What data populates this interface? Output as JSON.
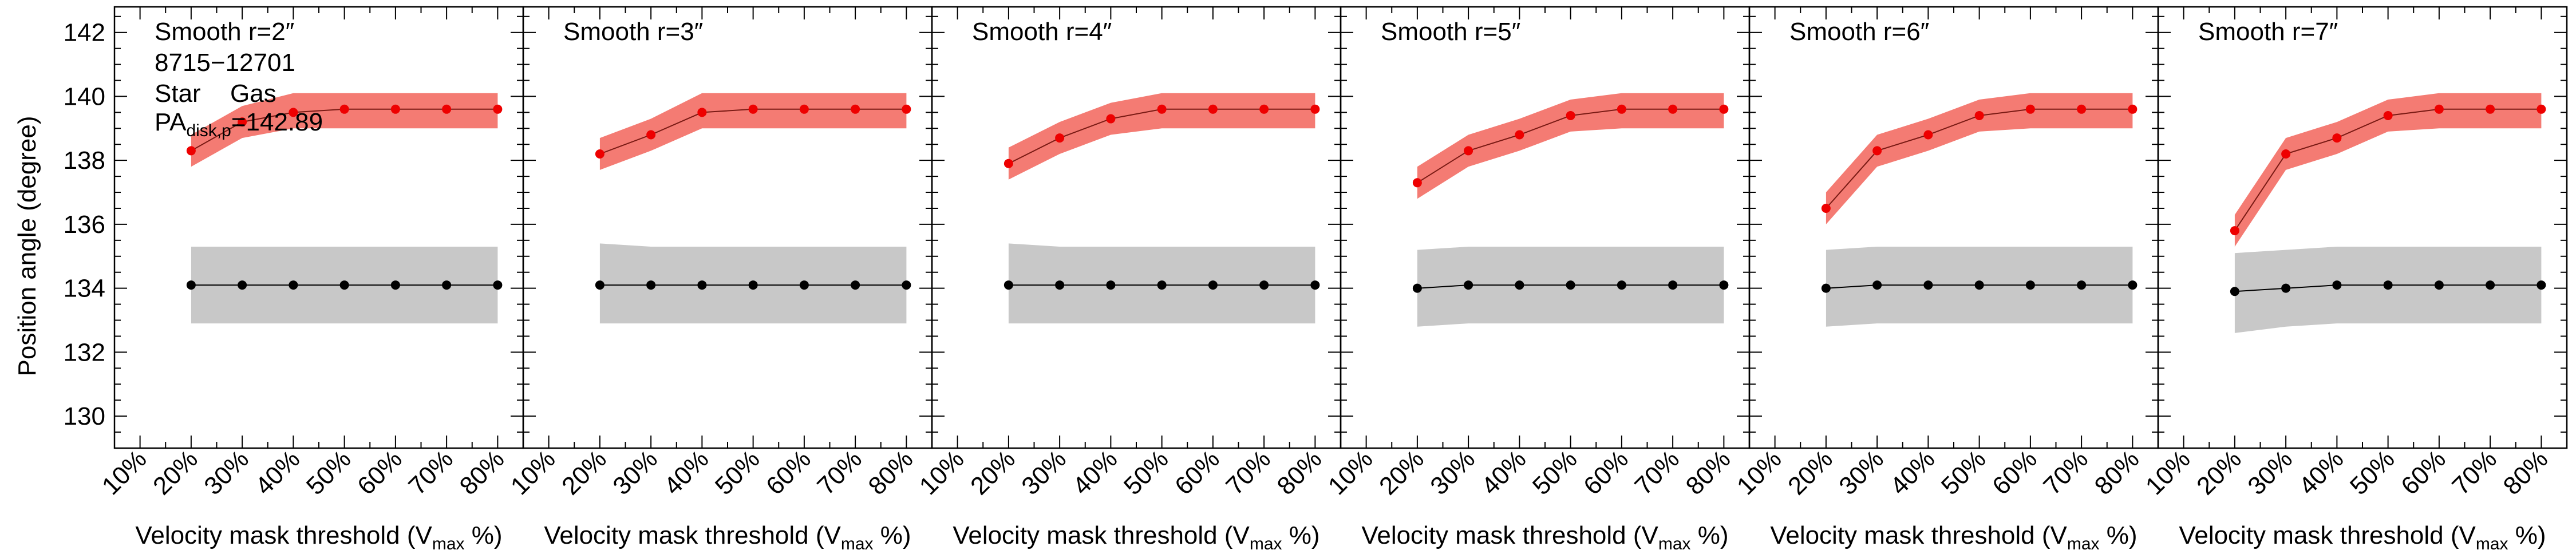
{
  "figure": {
    "ylabel": "Position angle (degree)",
    "xlabel_prefix": "Velocity mask threshold (V",
    "xlabel_sub": "max",
    "xlabel_suffix": " %)",
    "galaxy_id": "8715−12701",
    "legend_star": "Star",
    "legend_gas": "Gas",
    "pa_prefix": "PA",
    "pa_sub": "disk,p",
    "pa_value": "=142.89"
  },
  "colors": {
    "star": "#000000",
    "star_band": "#c8c8c8",
    "gas": "#ee0000",
    "gas_band": "#f47b73",
    "gas_line": "#7a1a14",
    "axis": "#000000"
  },
  "chart_data": [
    {
      "type": "line",
      "title": "Smooth r=2″",
      "x_tick_labels": [
        "10%",
        "20%",
        "30%",
        "40%",
        "50%",
        "60%",
        "70%",
        "80%"
      ],
      "xlim": [
        5,
        85
      ],
      "ylim": [
        129,
        142.8
      ],
      "y_ticks": [
        130,
        132,
        134,
        136,
        138,
        140,
        142
      ],
      "series": [
        {
          "name": "Star",
          "x": [
            20,
            30,
            40,
            50,
            60,
            70,
            80
          ],
          "values": [
            134.1,
            134.1,
            134.1,
            134.1,
            134.1,
            134.1,
            134.1
          ],
          "band_low": [
            132.9,
            132.9,
            132.9,
            132.9,
            132.9,
            132.9,
            132.9
          ],
          "band_high": [
            135.3,
            135.3,
            135.3,
            135.3,
            135.3,
            135.3,
            135.3
          ]
        },
        {
          "name": "Gas",
          "x": [
            20,
            30,
            40,
            50,
            60,
            70,
            80
          ],
          "values": [
            138.3,
            139.2,
            139.5,
            139.6,
            139.6,
            139.6,
            139.6
          ],
          "band_low": [
            137.8,
            138.7,
            139.0,
            139.0,
            139.0,
            139.0,
            139.0
          ],
          "band_high": [
            138.8,
            139.7,
            140.1,
            140.1,
            140.1,
            140.1,
            140.1
          ]
        }
      ]
    },
    {
      "type": "line",
      "title": "Smooth r=3″",
      "x_tick_labels": [
        "10%",
        "20%",
        "30%",
        "40%",
        "50%",
        "60%",
        "70%",
        "80%"
      ],
      "xlim": [
        5,
        85
      ],
      "ylim": [
        129,
        142.8
      ],
      "y_ticks": [
        130,
        132,
        134,
        136,
        138,
        140,
        142
      ],
      "series": [
        {
          "name": "Star",
          "x": [
            20,
            30,
            40,
            50,
            60,
            70,
            80
          ],
          "values": [
            134.1,
            134.1,
            134.1,
            134.1,
            134.1,
            134.1,
            134.1
          ],
          "band_low": [
            132.9,
            132.9,
            132.9,
            132.9,
            132.9,
            132.9,
            132.9
          ],
          "band_high": [
            135.4,
            135.3,
            135.3,
            135.3,
            135.3,
            135.3,
            135.3
          ]
        },
        {
          "name": "Gas",
          "x": [
            20,
            30,
            40,
            50,
            60,
            70,
            80
          ],
          "values": [
            138.2,
            138.8,
            139.5,
            139.6,
            139.6,
            139.6,
            139.6
          ],
          "band_low": [
            137.7,
            138.3,
            139.0,
            139.0,
            139.0,
            139.0,
            139.0
          ],
          "band_high": [
            138.7,
            139.3,
            140.1,
            140.1,
            140.1,
            140.1,
            140.1
          ]
        }
      ]
    },
    {
      "type": "line",
      "title": "Smooth r=4″",
      "x_tick_labels": [
        "10%",
        "20%",
        "30%",
        "40%",
        "50%",
        "60%",
        "70%",
        "80%"
      ],
      "xlim": [
        5,
        85
      ],
      "ylim": [
        129,
        142.8
      ],
      "y_ticks": [
        130,
        132,
        134,
        136,
        138,
        140,
        142
      ],
      "series": [
        {
          "name": "Star",
          "x": [
            20,
            30,
            40,
            50,
            60,
            70,
            80
          ],
          "values": [
            134.1,
            134.1,
            134.1,
            134.1,
            134.1,
            134.1,
            134.1
          ],
          "band_low": [
            132.9,
            132.9,
            132.9,
            132.9,
            132.9,
            132.9,
            132.9
          ],
          "band_high": [
            135.4,
            135.3,
            135.3,
            135.3,
            135.3,
            135.3,
            135.3
          ]
        },
        {
          "name": "Gas",
          "x": [
            20,
            30,
            40,
            50,
            60,
            70,
            80
          ],
          "values": [
            137.9,
            138.7,
            139.3,
            139.6,
            139.6,
            139.6,
            139.6
          ],
          "band_low": [
            137.4,
            138.2,
            138.8,
            139.0,
            139.0,
            139.0,
            139.0
          ],
          "band_high": [
            138.4,
            139.2,
            139.8,
            140.1,
            140.1,
            140.1,
            140.1
          ]
        }
      ]
    },
    {
      "type": "line",
      "title": "Smooth r=5″",
      "x_tick_labels": [
        "10%",
        "20%",
        "30%",
        "40%",
        "50%",
        "60%",
        "70%",
        "80%"
      ],
      "xlim": [
        5,
        85
      ],
      "ylim": [
        129,
        142.8
      ],
      "y_ticks": [
        130,
        132,
        134,
        136,
        138,
        140,
        142
      ],
      "series": [
        {
          "name": "Star",
          "x": [
            20,
            30,
            40,
            50,
            60,
            70,
            80
          ],
          "values": [
            134.0,
            134.1,
            134.1,
            134.1,
            134.1,
            134.1,
            134.1
          ],
          "band_low": [
            132.8,
            132.9,
            132.9,
            132.9,
            132.9,
            132.9,
            132.9
          ],
          "band_high": [
            135.2,
            135.3,
            135.3,
            135.3,
            135.3,
            135.3,
            135.3
          ]
        },
        {
          "name": "Gas",
          "x": [
            20,
            30,
            40,
            50,
            60,
            70,
            80
          ],
          "values": [
            137.3,
            138.3,
            138.8,
            139.4,
            139.6,
            139.6,
            139.6
          ],
          "band_low": [
            136.8,
            137.8,
            138.3,
            138.9,
            139.0,
            139.0,
            139.0
          ],
          "band_high": [
            137.8,
            138.8,
            139.3,
            139.9,
            140.1,
            140.1,
            140.1
          ]
        }
      ]
    },
    {
      "type": "line",
      "title": "Smooth r=6″",
      "x_tick_labels": [
        "10%",
        "20%",
        "30%",
        "40%",
        "50%",
        "60%",
        "70%",
        "80%"
      ],
      "xlim": [
        5,
        85
      ],
      "ylim": [
        129,
        142.8
      ],
      "y_ticks": [
        130,
        132,
        134,
        136,
        138,
        140,
        142
      ],
      "series": [
        {
          "name": "Star",
          "x": [
            20,
            30,
            40,
            50,
            60,
            70,
            80
          ],
          "values": [
            134.0,
            134.1,
            134.1,
            134.1,
            134.1,
            134.1,
            134.1
          ],
          "band_low": [
            132.8,
            132.9,
            132.9,
            132.9,
            132.9,
            132.9,
            132.9
          ],
          "band_high": [
            135.2,
            135.3,
            135.3,
            135.3,
            135.3,
            135.3,
            135.3
          ]
        },
        {
          "name": "Gas",
          "x": [
            20,
            30,
            40,
            50,
            60,
            70,
            80
          ],
          "values": [
            136.5,
            138.3,
            138.8,
            139.4,
            139.6,
            139.6,
            139.6
          ],
          "band_low": [
            136.0,
            137.8,
            138.3,
            138.9,
            139.0,
            139.0,
            139.0
          ],
          "band_high": [
            137.0,
            138.8,
            139.3,
            139.9,
            140.1,
            140.1,
            140.1
          ]
        }
      ]
    },
    {
      "type": "line",
      "title": "Smooth r=7″",
      "x_tick_labels": [
        "10%",
        "20%",
        "30%",
        "40%",
        "50%",
        "60%",
        "70%",
        "80%"
      ],
      "xlim": [
        5,
        85
      ],
      "ylim": [
        129,
        142.8
      ],
      "y_ticks": [
        130,
        132,
        134,
        136,
        138,
        140,
        142
      ],
      "series": [
        {
          "name": "Star",
          "x": [
            20,
            30,
            40,
            50,
            60,
            70,
            80
          ],
          "values": [
            133.9,
            134.0,
            134.1,
            134.1,
            134.1,
            134.1,
            134.1
          ],
          "band_low": [
            132.6,
            132.8,
            132.9,
            132.9,
            132.9,
            132.9,
            132.9
          ],
          "band_high": [
            135.1,
            135.2,
            135.3,
            135.3,
            135.3,
            135.3,
            135.3
          ]
        },
        {
          "name": "Gas",
          "x": [
            20,
            30,
            40,
            50,
            60,
            70,
            80
          ],
          "values": [
            135.8,
            138.2,
            138.7,
            139.4,
            139.6,
            139.6,
            139.6
          ],
          "band_low": [
            135.3,
            137.7,
            138.2,
            138.9,
            139.0,
            139.0,
            139.0
          ],
          "band_high": [
            136.3,
            138.7,
            139.2,
            139.9,
            140.1,
            140.1,
            140.1
          ]
        }
      ]
    }
  ]
}
